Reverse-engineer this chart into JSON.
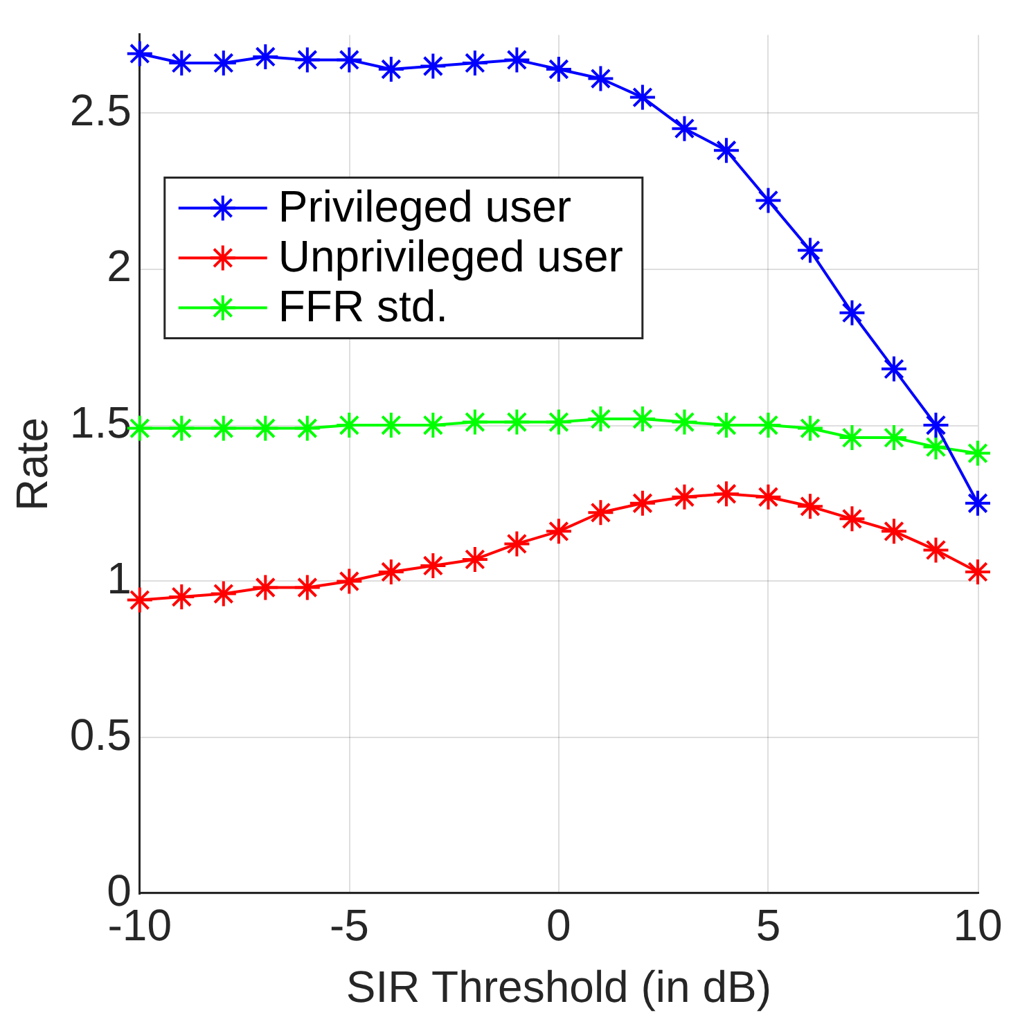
{
  "chart_data": {
    "type": "line",
    "xlabel": "SIR Threshold (in dB)",
    "ylabel": "Rate",
    "x": [
      -10,
      -9,
      -8,
      -7,
      -6,
      -5,
      -4,
      -3,
      -2,
      -1,
      0,
      1,
      2,
      3,
      4,
      5,
      6,
      7,
      8,
      9,
      10
    ],
    "series": [
      {
        "name": "Privileged user",
        "color": "#0000ff",
        "values": [
          2.69,
          2.66,
          2.66,
          2.68,
          2.67,
          2.67,
          2.64,
          2.65,
          2.66,
          2.67,
          2.64,
          2.61,
          2.55,
          2.45,
          2.38,
          2.22,
          2.06,
          1.86,
          1.68,
          1.5,
          1.25
        ]
      },
      {
        "name": "Unprivileged user",
        "color": "#ff0000",
        "values": [
          0.94,
          0.95,
          0.96,
          0.98,
          0.98,
          1.0,
          1.03,
          1.05,
          1.07,
          1.12,
          1.16,
          1.22,
          1.25,
          1.27,
          1.28,
          1.27,
          1.24,
          1.2,
          1.16,
          1.1,
          1.03
        ]
      },
      {
        "name": "FFR std.",
        "color": "#00ff00",
        "values": [
          1.49,
          1.49,
          1.49,
          1.49,
          1.49,
          1.5,
          1.5,
          1.5,
          1.51,
          1.51,
          1.51,
          1.52,
          1.52,
          1.51,
          1.5,
          1.5,
          1.49,
          1.46,
          1.46,
          1.43,
          1.41
        ]
      }
    ],
    "xlim": [
      -10,
      10
    ],
    "xticks": [
      -10,
      -5,
      0,
      5,
      10
    ],
    "ylim": [
      0,
      2.75
    ],
    "yticks": [
      0,
      0.5,
      1,
      1.5,
      2,
      2.5
    ],
    "grid": true,
    "legend": "top left",
    "marker": "cross",
    "line_style": "solid"
  }
}
